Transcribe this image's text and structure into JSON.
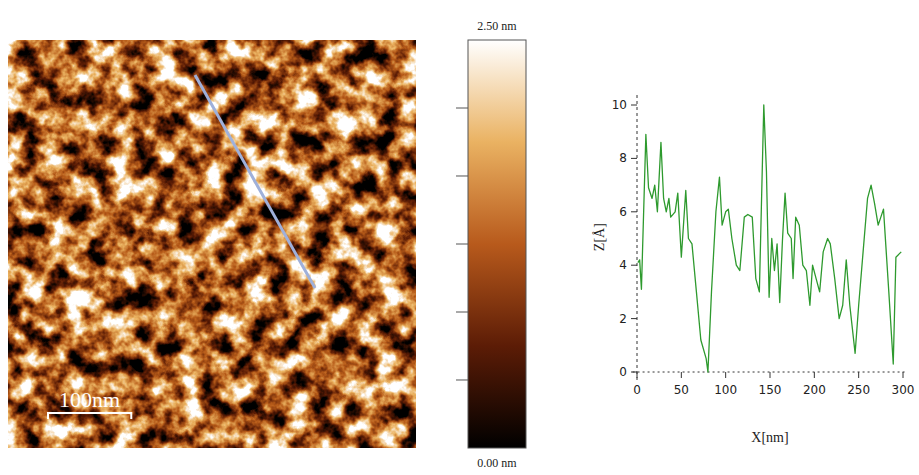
{
  "chart_data": [
    {
      "type": "heatmap",
      "xlim": [
        0,
        490
      ],
      "ylim": [
        0,
        490
      ],
      "tick_labels": false,
      "scale_bar": {
        "value": 100,
        "label": "100nm"
      },
      "colorbar_range": [
        0,
        2.5
      ],
      "colorbar_ticks": [
        0.4167,
        0.8333,
        1.25,
        1.6667,
        2.0833
      ],
      "colorbar_labels": [
        {
          "value": 2.5,
          "label": "2.50 nm"
        },
        {
          "value": 0,
          "label": "0.00 nm"
        }
      ]
    },
    {
      "type": "line",
      "x_label": "X[nm]",
      "y_label": "Z[Å]",
      "color": "#2e9a2e",
      "x": [
        1,
        3,
        5,
        10,
        13,
        17,
        20,
        23,
        27,
        30,
        33,
        36,
        38,
        43,
        46,
        50,
        55,
        58,
        62,
        67,
        72,
        78,
        80,
        84,
        89,
        93,
        96,
        100,
        103,
        107,
        112,
        116,
        121,
        125,
        130,
        134,
        138,
        143,
        146,
        149,
        152,
        155,
        158,
        161,
        164,
        167,
        170,
        174,
        176,
        179,
        183,
        187,
        191,
        195,
        198,
        202,
        206,
        210,
        215,
        218,
        223,
        228,
        232,
        236,
        240,
        246,
        250,
        255,
        260,
        264,
        268,
        272,
        278,
        284,
        289,
        292,
        298
      ],
      "values": [
        4.1,
        4.2,
        3.1,
        8.9,
        6.9,
        6.5,
        7.0,
        6.0,
        8.6,
        6.5,
        6.0,
        6.5,
        5.8,
        6.0,
        6.7,
        4.3,
        6.8,
        5.0,
        4.8,
        3.0,
        1.2,
        0.5,
        0.0,
        3.0,
        6.0,
        7.3,
        5.5,
        6.0,
        6.1,
        5.0,
        4.0,
        3.8,
        5.8,
        5.9,
        5.8,
        3.5,
        3.0,
        10.0,
        7.5,
        2.8,
        5.0,
        3.8,
        4.8,
        2.6,
        4.9,
        6.7,
        5.2,
        5.0,
        3.5,
        5.8,
        5.5,
        4.0,
        3.8,
        2.5,
        4.0,
        3.5,
        3.0,
        4.5,
        5.0,
        4.8,
        3.5,
        2.0,
        2.5,
        4.2,
        2.5,
        0.7,
        2.5,
        4.5,
        6.5,
        7.0,
        6.3,
        5.5,
        6.1,
        3.0,
        0.3,
        4.3,
        4.5
      ],
      "xlim": [
        -5,
        305
      ],
      "ylim": [
        -0.3,
        10.4
      ],
      "xticks": [
        0,
        50,
        100,
        150,
        200,
        250,
        300
      ],
      "yticks": [
        0,
        2,
        4,
        6,
        8,
        10
      ]
    }
  ]
}
